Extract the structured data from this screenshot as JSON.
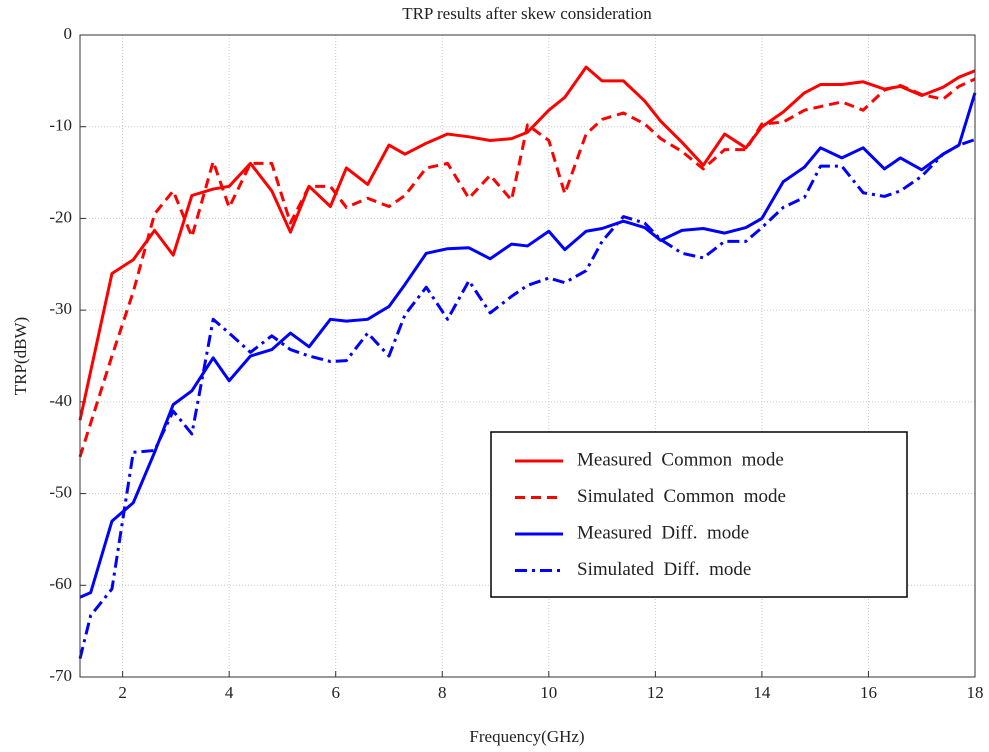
{
  "chart_data": {
    "type": "line",
    "title": "TRP results after skew consideration",
    "xlabel": "Frequency(GHz)",
    "ylabel": "TRP(dBW)",
    "xlim": [
      1.2,
      18
    ],
    "ylim": [
      -70,
      0
    ],
    "xticks": [
      2,
      4,
      6,
      8,
      10,
      12,
      14,
      16,
      18
    ],
    "yticks": [
      0,
      -10,
      -20,
      -30,
      -40,
      -50,
      -60,
      -70
    ],
    "grid": true,
    "legend": "lower right",
    "series": [
      {
        "name": "Measured  Common  mode",
        "color": "#ff0000",
        "style": "solid",
        "x": [
          1.2,
          1.8,
          2.2,
          2.6,
          2.95,
          3.3,
          3.7,
          4.0,
          4.4,
          4.8,
          5.15,
          5.5,
          5.9,
          6.2,
          6.6,
          7.0,
          7.3,
          7.7,
          8.1,
          8.5,
          8.9,
          9.3,
          9.6,
          10.0,
          10.3,
          10.7,
          11.0,
          11.4,
          11.8,
          12.1,
          12.5,
          12.9,
          13.3,
          13.7,
          14.0,
          14.4,
          14.8,
          15.1,
          15.5,
          15.9,
          16.3,
          16.6,
          17.0,
          17.4,
          17.7,
          18
        ],
        "values": [
          -42,
          -26,
          -24.5,
          -21.3,
          -24,
          -17.5,
          -16.8,
          -16.5,
          -14,
          -17,
          -21.5,
          -16.5,
          -18.7,
          -14.5,
          -16.3,
          -12,
          -13,
          -11.8,
          -10.8,
          -11.1,
          -11.5,
          -11.3,
          -10.6,
          -8.2,
          -6.8,
          -3.5,
          -5,
          -5,
          -7.2,
          -9.4,
          -11.7,
          -14.2,
          -10.8,
          -12.3,
          -10,
          -8.4,
          -6.3,
          -5.4,
          -5.4,
          -5.1,
          -5.9,
          -5.6,
          -6.6,
          -5.7,
          -4.6,
          -3.9
        ]
      },
      {
        "name": "Simulated  Common  mode",
        "color": "#ff0000",
        "style": "dashed",
        "x": [
          1.2,
          1.8,
          2.2,
          2.6,
          2.95,
          3.3,
          3.7,
          4.0,
          4.4,
          4.8,
          5.15,
          5.5,
          5.9,
          6.2,
          6.6,
          7.0,
          7.3,
          7.7,
          8.1,
          8.5,
          8.9,
          9.3,
          9.6,
          10.0,
          10.3,
          10.7,
          11.0,
          11.4,
          11.8,
          12.1,
          12.5,
          12.9,
          13.3,
          13.7,
          14.0,
          14.4,
          14.8,
          15.1,
          15.5,
          15.9,
          16.3,
          16.6,
          17.0,
          17.4,
          17.7,
          18
        ],
        "values": [
          -46,
          -35,
          -28,
          -19.5,
          -17,
          -22,
          -13.8,
          -18.8,
          -14,
          -14,
          -20.5,
          -16.5,
          -16.5,
          -18.8,
          -17.8,
          -18.7,
          -17.5,
          -14.5,
          -14,
          -17.8,
          -15.3,
          -18,
          -9.8,
          -11.5,
          -17.3,
          -10.8,
          -9.2,
          -8.5,
          -9.7,
          -11.3,
          -12.7,
          -14.6,
          -12.5,
          -12.5,
          -9.7,
          -9.5,
          -8.2,
          -7.8,
          -7.3,
          -8.2,
          -6,
          -5.5,
          -6.5,
          -7,
          -5.6,
          -4.8
        ]
      },
      {
        "name": "Measured  Diff.  mode",
        "color": "#0000ff",
        "style": "solid",
        "x": [
          1.2,
          1.4,
          1.8,
          2.2,
          2.6,
          2.95,
          3.3,
          3.7,
          4.0,
          4.4,
          4.8,
          5.15,
          5.5,
          5.9,
          6.2,
          6.6,
          7.0,
          7.3,
          7.7,
          8.1,
          8.5,
          8.9,
          9.3,
          9.6,
          10.0,
          10.3,
          10.7,
          11.0,
          11.4,
          11.8,
          12.1,
          12.5,
          12.9,
          13.3,
          13.7,
          14.0,
          14.4,
          14.8,
          15.1,
          15.5,
          15.9,
          16.3,
          16.6,
          17.0,
          17.4,
          17.7,
          18
        ],
        "values": [
          -61.3,
          -60.8,
          -53,
          -51,
          -45.5,
          -40.3,
          -38.8,
          -35.2,
          -37.7,
          -35,
          -34.3,
          -32.5,
          -34,
          -31,
          -31.2,
          -31,
          -29.6,
          -27.2,
          -23.8,
          -23.3,
          -23.2,
          -24.4,
          -22.8,
          -23,
          -21.4,
          -23.4,
          -21.4,
          -21.1,
          -20.3,
          -21,
          -22.4,
          -21.3,
          -21.1,
          -21.6,
          -21,
          -20,
          -16,
          -14.4,
          -12.3,
          -13.4,
          -12.3,
          -14.6,
          -13.4,
          -14.7,
          -13,
          -12,
          -6.3
        ]
      },
      {
        "name": "Simulated  Diff.  mode",
        "color": "#0000ff",
        "style": "dashdot",
        "x": [
          1.2,
          1.4,
          1.8,
          2.2,
          2.6,
          2.95,
          3.3,
          3.7,
          4.0,
          4.4,
          4.8,
          5.15,
          5.5,
          5.9,
          6.2,
          6.6,
          7.0,
          7.3,
          7.7,
          8.1,
          8.5,
          8.9,
          9.3,
          9.6,
          10.0,
          10.3,
          10.7,
          11.0,
          11.4,
          11.8,
          12.1,
          12.5,
          12.9,
          13.3,
          13.7,
          14.0,
          14.4,
          14.8,
          15.1,
          15.5,
          15.9,
          16.3,
          16.6,
          17.0,
          17.4,
          17.7,
          18
        ],
        "values": [
          -68,
          -63.3,
          -60.4,
          -45.5,
          -45.3,
          -41,
          -43.5,
          -31,
          -32.5,
          -34.6,
          -32.8,
          -34.3,
          -35,
          -35.6,
          -35.5,
          -32.5,
          -35,
          -30.5,
          -27.5,
          -31,
          -26.8,
          -30.3,
          -28.5,
          -27.3,
          -26.5,
          -27,
          -25.7,
          -22.5,
          -19.8,
          -20.5,
          -22.3,
          -23.8,
          -24.3,
          -22.5,
          -22.5,
          -21,
          -18.8,
          -17.7,
          -14.3,
          -14.3,
          -17.2,
          -17.6,
          -17,
          -15.4,
          -13,
          -12,
          -11.4
        ]
      }
    ]
  }
}
